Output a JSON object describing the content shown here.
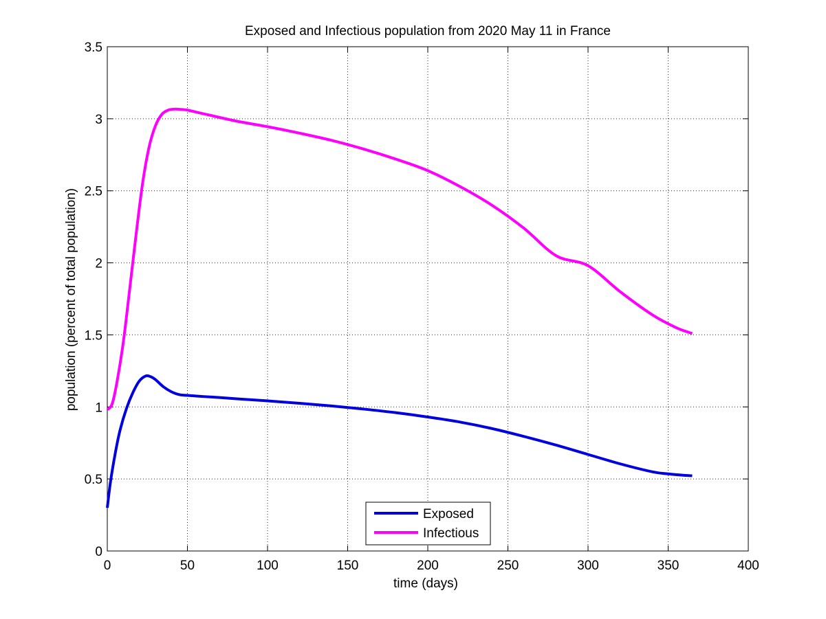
{
  "chart_data": {
    "type": "line",
    "title": "Exposed and Infectious population from 2020 May 11 in France",
    "xlabel": "time (days)",
    "ylabel": "population (percent of total population)",
    "xlim": [
      0,
      400
    ],
    "ylim": [
      0,
      3.5
    ],
    "xticks": [
      0,
      50,
      100,
      150,
      200,
      250,
      300,
      350,
      400
    ],
    "yticks": [
      0,
      0.5,
      1,
      1.5,
      2,
      2.5,
      3,
      3.5
    ],
    "xtick_labels": [
      "0",
      "50",
      "100",
      "150",
      "200",
      "250",
      "300",
      "350",
      "400"
    ],
    "ytick_labels": [
      "0",
      "0.5",
      "1",
      "1.5",
      "2",
      "2.5",
      "3",
      "3.5"
    ],
    "grid": true,
    "legend_position": "bottom-center",
    "series": [
      {
        "name": "Exposed",
        "color": "#0000e0",
        "x": [
          0,
          2,
          5,
          8,
          12,
          16,
          20,
          24,
          27,
          30,
          35,
          40,
          45,
          50,
          60,
          70,
          80,
          100,
          120,
          140,
          160,
          180,
          200,
          220,
          240,
          260,
          280,
          300,
          320,
          340,
          350,
          360,
          365
        ],
        "y": [
          0.3,
          0.48,
          0.68,
          0.84,
          0.99,
          1.1,
          1.18,
          1.215,
          1.21,
          1.19,
          1.14,
          1.105,
          1.085,
          1.08,
          1.072,
          1.065,
          1.057,
          1.042,
          1.025,
          1.007,
          0.985,
          0.96,
          0.93,
          0.895,
          0.85,
          0.795,
          0.735,
          0.67,
          0.605,
          0.55,
          0.535,
          0.525,
          0.522
        ]
      },
      {
        "name": "Infectious",
        "color": "#ff00ff",
        "x": [
          0,
          3,
          6,
          10,
          14,
          18,
          22,
          26,
          30,
          34,
          38,
          42,
          46,
          50,
          60,
          80,
          100,
          120,
          140,
          160,
          180,
          200,
          220,
          240,
          260,
          280,
          300,
          320,
          340,
          355,
          365
        ],
        "y": [
          0.98,
          1.02,
          1.17,
          1.45,
          1.82,
          2.2,
          2.55,
          2.8,
          2.95,
          3.03,
          3.06,
          3.067,
          3.065,
          3.06,
          3.035,
          2.985,
          2.945,
          2.9,
          2.85,
          2.79,
          2.72,
          2.64,
          2.53,
          2.4,
          2.24,
          2.05,
          1.98,
          1.8,
          1.64,
          1.55,
          1.51
        ]
      }
    ]
  }
}
